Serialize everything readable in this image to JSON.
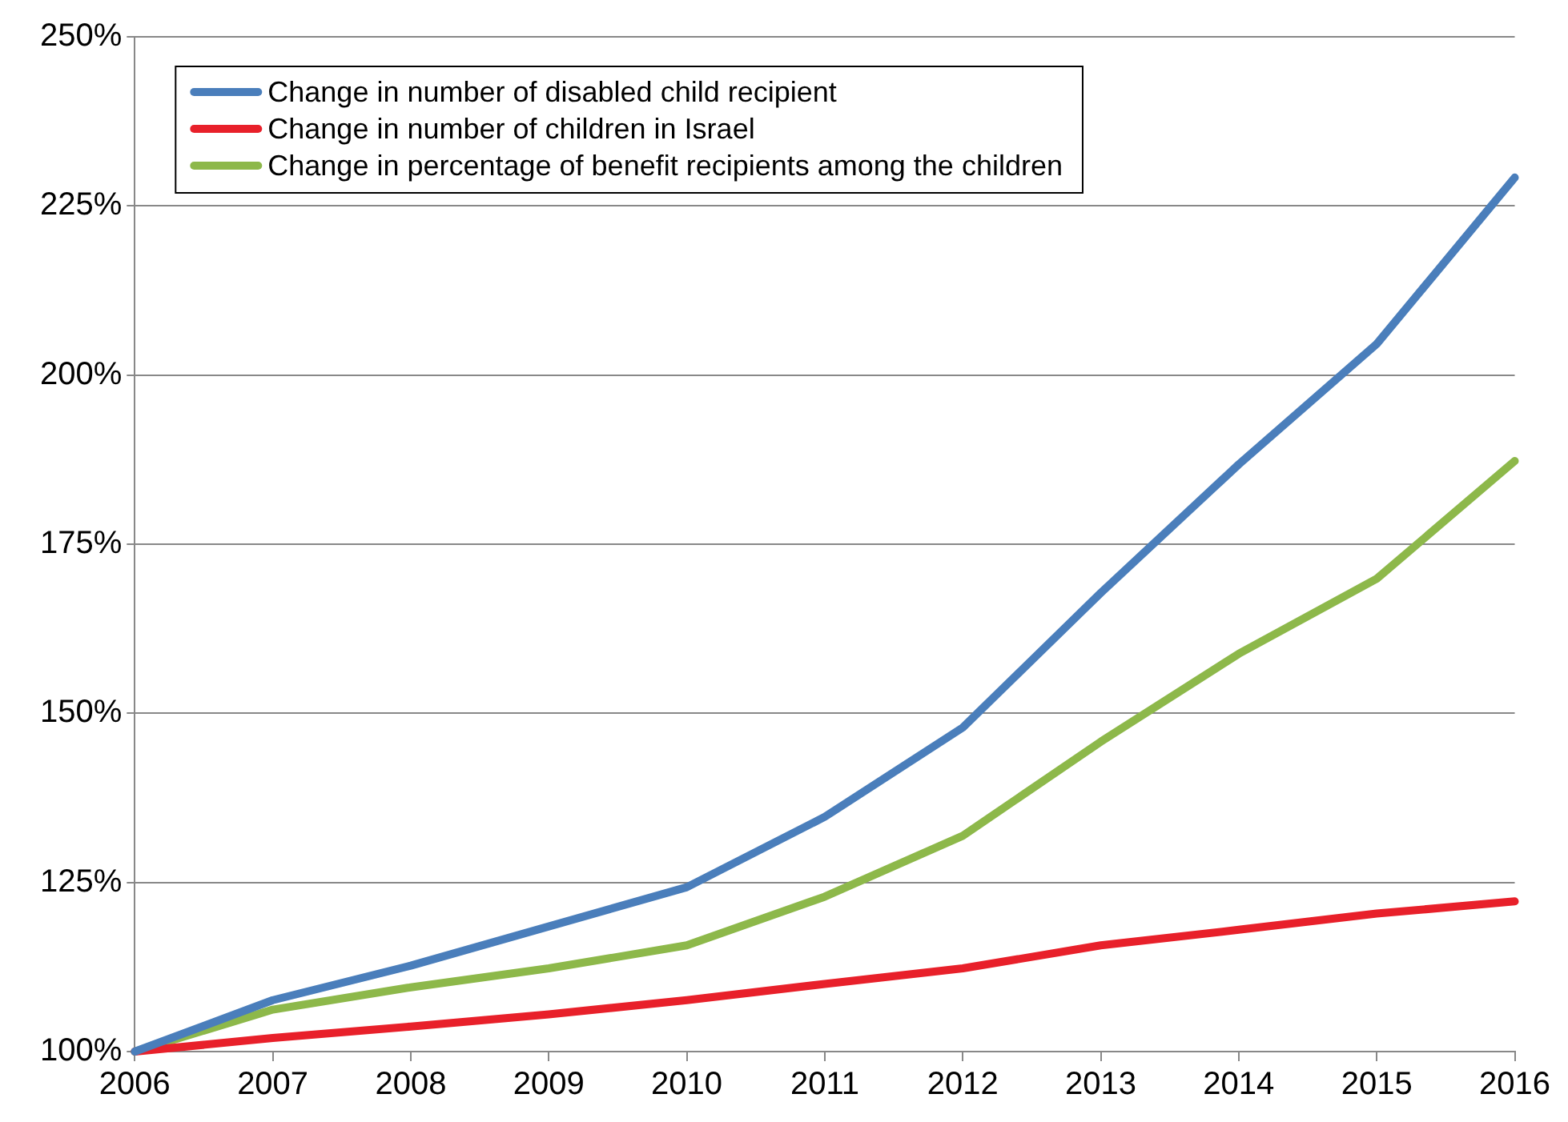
{
  "chart_data": {
    "type": "line",
    "x": [
      2006,
      2007,
      2008,
      2009,
      2010,
      2011,
      2012,
      2013,
      2014,
      2015,
      2016
    ],
    "series": [
      {
        "name": "Change in number of disabled child recipient",
        "color": "#4a7ebb",
        "values": [
          100,
          107.6,
          112.7,
          118.5,
          124.3,
          134.7,
          147.9,
          167.8,
          186.8,
          204.6,
          229.2
        ]
      },
      {
        "name": "Change in number of children in Israel",
        "color": "#e8202a",
        "values": [
          100,
          102,
          103.7,
          105.5,
          107.6,
          110,
          112.3,
          115.7,
          118,
          120.4,
          122.2
        ]
      },
      {
        "name": "Change in percentage of benefit recipients among the children",
        "color": "#8db84a",
        "values": [
          100,
          106.2,
          109.5,
          112.3,
          115.7,
          122.9,
          131.9,
          145.8,
          158.8,
          169.9,
          187.3
        ]
      }
    ],
    "xlim": [
      2006,
      2016
    ],
    "xticks": [
      2006,
      2007,
      2008,
      2009,
      2010,
      2011,
      2012,
      2013,
      2014,
      2015,
      2016
    ],
    "ylim": [
      100,
      250
    ],
    "yticks": [
      {
        "value": 100,
        "label": "100%"
      },
      {
        "value": 125,
        "label": "125%"
      },
      {
        "value": 150,
        "label": "150%"
      },
      {
        "value": 175,
        "label": "175%"
      },
      {
        "value": 200,
        "label": "200%"
      },
      {
        "value": 225,
        "label": "225%"
      },
      {
        "value": 250,
        "label": "250%"
      }
    ],
    "grid": "y",
    "legend": "top left",
    "marker": "none",
    "line_style": "solid"
  }
}
